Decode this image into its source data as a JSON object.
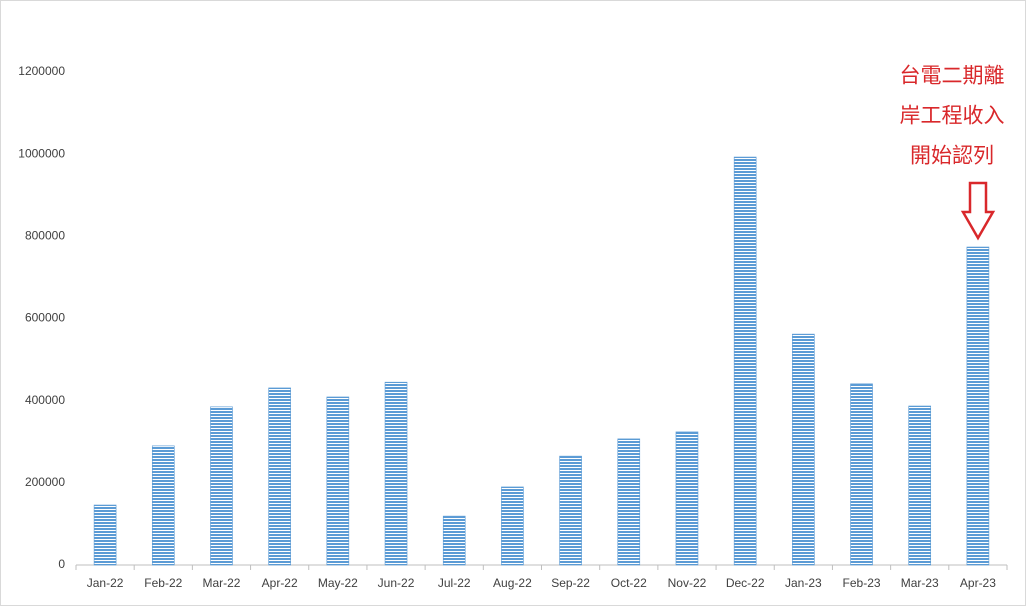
{
  "chart_data": {
    "type": "bar",
    "categories": [
      "Jan-22",
      "Feb-22",
      "Mar-22",
      "Apr-22",
      "May-22",
      "Jun-22",
      "Jul-22",
      "Aug-22",
      "Sep-22",
      "Oct-22",
      "Nov-22",
      "Dec-22",
      "Jan-23",
      "Feb-23",
      "Mar-23",
      "Apr-23"
    ],
    "values": [
      146000,
      290000,
      385000,
      431000,
      409000,
      445000,
      119000,
      190000,
      265000,
      307000,
      324000,
      993000,
      562000,
      441000,
      387000,
      774000
    ],
    "color": "#5b9bd5",
    "ylim": [
      0,
      1200000
    ],
    "yticks": [
      0,
      200000,
      400000,
      600000,
      800000,
      1000000,
      1200000
    ],
    "grid": false,
    "annotation": {
      "lines": [
        "台電二期離",
        "岸工程收入",
        "開始認列"
      ],
      "color": "#d9282b"
    }
  }
}
